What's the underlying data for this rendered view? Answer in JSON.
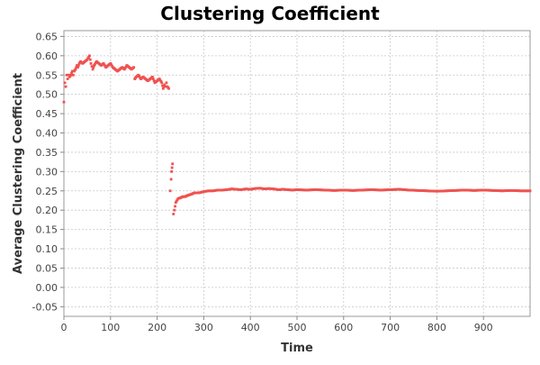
{
  "chart_data": {
    "type": "scatter",
    "title": "Clustering Coefficient",
    "xlabel": "Time",
    "ylabel": "Average Clustering Coefficient",
    "xlim": [
      0,
      1000
    ],
    "ylim": [
      -0.075,
      0.665
    ],
    "xticks": [
      0,
      100,
      200,
      300,
      400,
      500,
      600,
      700,
      800,
      900
    ],
    "yticks": [
      -0.05,
      0.0,
      0.05,
      0.1,
      0.15,
      0.2,
      0.25,
      0.3,
      0.35,
      0.4,
      0.45,
      0.5,
      0.55,
      0.6,
      0.65
    ],
    "ytick_labels": [
      "-0.05",
      "0.00",
      "0.05",
      "0.10",
      "0.15",
      "0.20",
      "0.25",
      "0.30",
      "0.35",
      "0.40",
      "0.45",
      "0.50",
      "0.55",
      "0.60",
      "0.65"
    ],
    "grid": true,
    "point_color": "#ef5350",
    "series": [
      {
        "x": [
          0,
          2,
          4,
          6,
          8,
          10,
          12,
          15,
          18,
          20,
          22,
          25,
          28,
          30,
          33,
          36,
          40,
          45,
          50,
          55,
          58,
          62,
          65,
          70,
          75,
          80,
          85,
          90,
          95,
          100,
          105,
          110,
          115,
          120,
          125,
          130,
          135,
          140,
          145,
          150,
          152,
          155,
          160,
          165,
          170,
          175,
          180,
          185,
          190,
          195,
          200,
          205,
          210,
          213,
          216,
          218,
          220,
          222,
          225,
          228,
          230,
          231,
          232,
          233,
          235,
          237,
          240,
          245,
          250,
          255,
          260,
          265,
          270,
          275,
          280,
          290,
          300,
          310,
          320,
          330,
          340,
          350,
          360,
          370,
          380,
          390,
          400,
          410,
          420,
          430,
          440,
          450,
          460,
          470,
          480,
          490,
          500,
          520,
          540,
          560,
          580,
          600,
          620,
          640,
          660,
          680,
          700,
          720,
          740,
          760,
          780,
          800,
          820,
          840,
          860,
          880,
          900,
          920,
          940,
          960,
          980,
          1000
        ],
        "y": [
          0.48,
          0.53,
          0.52,
          0.55,
          0.54,
          0.55,
          0.545,
          0.55,
          0.56,
          0.55,
          0.56,
          0.565,
          0.575,
          0.57,
          0.58,
          0.585,
          0.58,
          0.585,
          0.59,
          0.6,
          0.58,
          0.565,
          0.575,
          0.585,
          0.58,
          0.575,
          0.58,
          0.57,
          0.575,
          0.58,
          0.57,
          0.565,
          0.56,
          0.565,
          0.57,
          0.565,
          0.575,
          0.57,
          0.565,
          0.57,
          0.54,
          0.545,
          0.55,
          0.54,
          0.545,
          0.54,
          0.535,
          0.54,
          0.545,
          0.53,
          0.535,
          0.54,
          0.53,
          0.515,
          0.525,
          0.52,
          0.53,
          0.52,
          0.515,
          0.25,
          0.28,
          0.3,
          0.31,
          0.32,
          0.19,
          0.2,
          0.22,
          0.23,
          0.232,
          0.235,
          0.235,
          0.238,
          0.24,
          0.242,
          0.245,
          0.245,
          0.248,
          0.25,
          0.25,
          0.252,
          0.252,
          0.253,
          0.255,
          0.254,
          0.253,
          0.255,
          0.254,
          0.256,
          0.257,
          0.255,
          0.256,
          0.255,
          0.253,
          0.254,
          0.253,
          0.252,
          0.253,
          0.252,
          0.253,
          0.252,
          0.251,
          0.252,
          0.251,
          0.252,
          0.253,
          0.252,
          0.253,
          0.254,
          0.252,
          0.251,
          0.25,
          0.249,
          0.25,
          0.251,
          0.252,
          0.251,
          0.252,
          0.251,
          0.25,
          0.251,
          0.25,
          0.25
        ]
      }
    ]
  }
}
